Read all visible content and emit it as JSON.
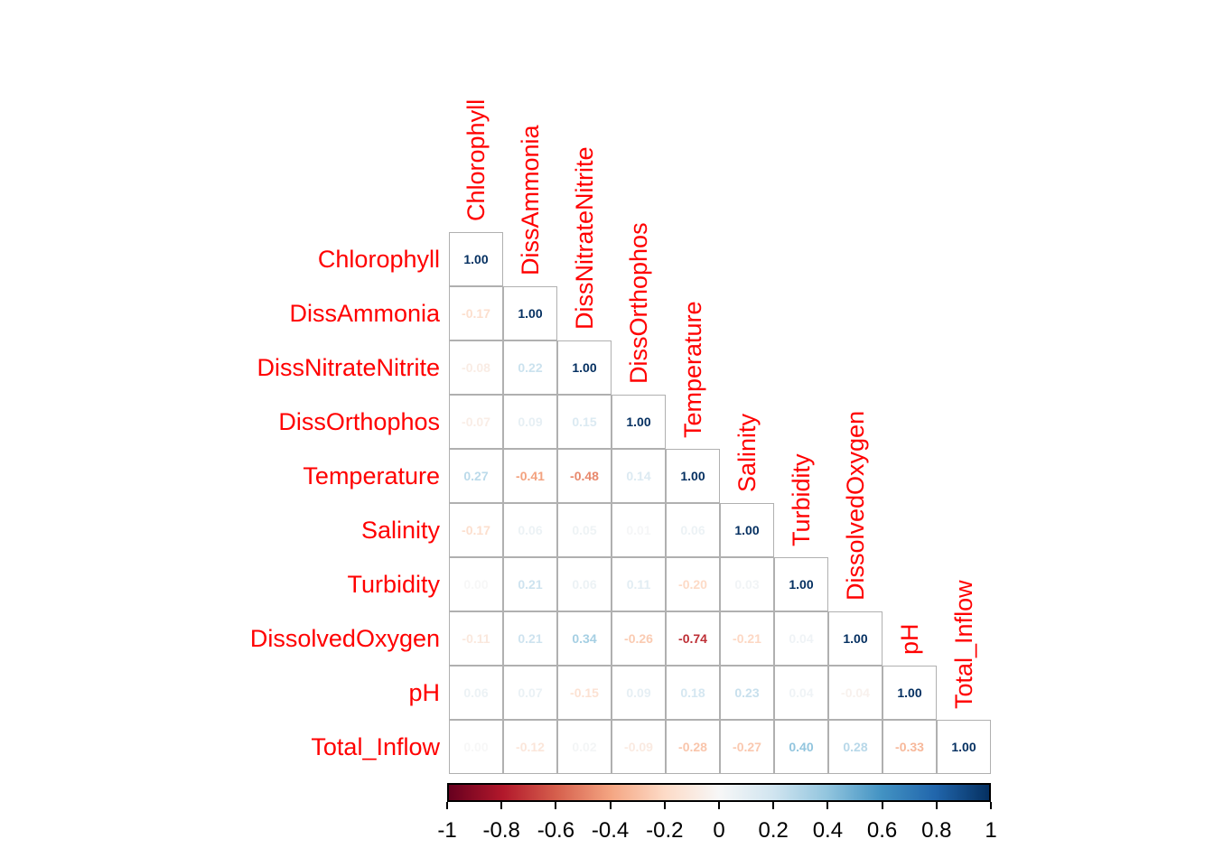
{
  "figure": {
    "kind": "correlogram",
    "label_color": "#FF0000",
    "axis_text_color": "#000000",
    "grid_line_color": "#b0b0b0",
    "background_color": "#FFFFFF"
  },
  "chart_data": {
    "type": "heatmap",
    "subtype": "correlation-matrix-lower-triangle-numbers",
    "title": "",
    "variables": [
      "Chlorophyll",
      "DissAmmonia",
      "DissNitrateNitrite",
      "DissOrthophos",
      "Temperature",
      "Salinity",
      "Turbidity",
      "DissolvedOxygen",
      "pH",
      "Total_Inflow"
    ],
    "matrix_lower_triangle": [
      [
        1.0
      ],
      [
        -0.17,
        1.0
      ],
      [
        -0.08,
        0.22,
        1.0
      ],
      [
        -0.07,
        0.09,
        0.15,
        1.0
      ],
      [
        0.27,
        -0.41,
        -0.48,
        0.14,
        1.0
      ],
      [
        -0.17,
        0.06,
        0.05,
        0.01,
        0.06,
        1.0
      ],
      [
        0.0,
        0.21,
        0.06,
        0.11,
        -0.2,
        0.03,
        1.0
      ],
      [
        -0.11,
        0.21,
        0.34,
        -0.26,
        -0.74,
        -0.21,
        0.04,
        1.0
      ],
      [
        0.06,
        0.07,
        -0.15,
        0.09,
        0.18,
        0.23,
        0.04,
        -0.04,
        1.0
      ],
      [
        0.0,
        -0.12,
        0.02,
        -0.09,
        -0.28,
        -0.27,
        0.4,
        0.28,
        -0.33,
        1.0
      ]
    ],
    "value_format_decimals": 2,
    "colorbar": {
      "position": "bottom",
      "min": -1,
      "max": 1,
      "tick_labels": [
        "-1",
        "-0.8",
        "-0.6",
        "-0.4",
        "-0.2",
        "0",
        "0.2",
        "0.4",
        "0.6",
        "0.8",
        "1"
      ],
      "palette_rdbu": [
        "#67001F",
        "#B2182B",
        "#D6604D",
        "#F4A582",
        "#FDDBC7",
        "#F7F7F7",
        "#D1E5F0",
        "#92C5DE",
        "#4393C3",
        "#2166AC",
        "#053061"
      ]
    }
  }
}
